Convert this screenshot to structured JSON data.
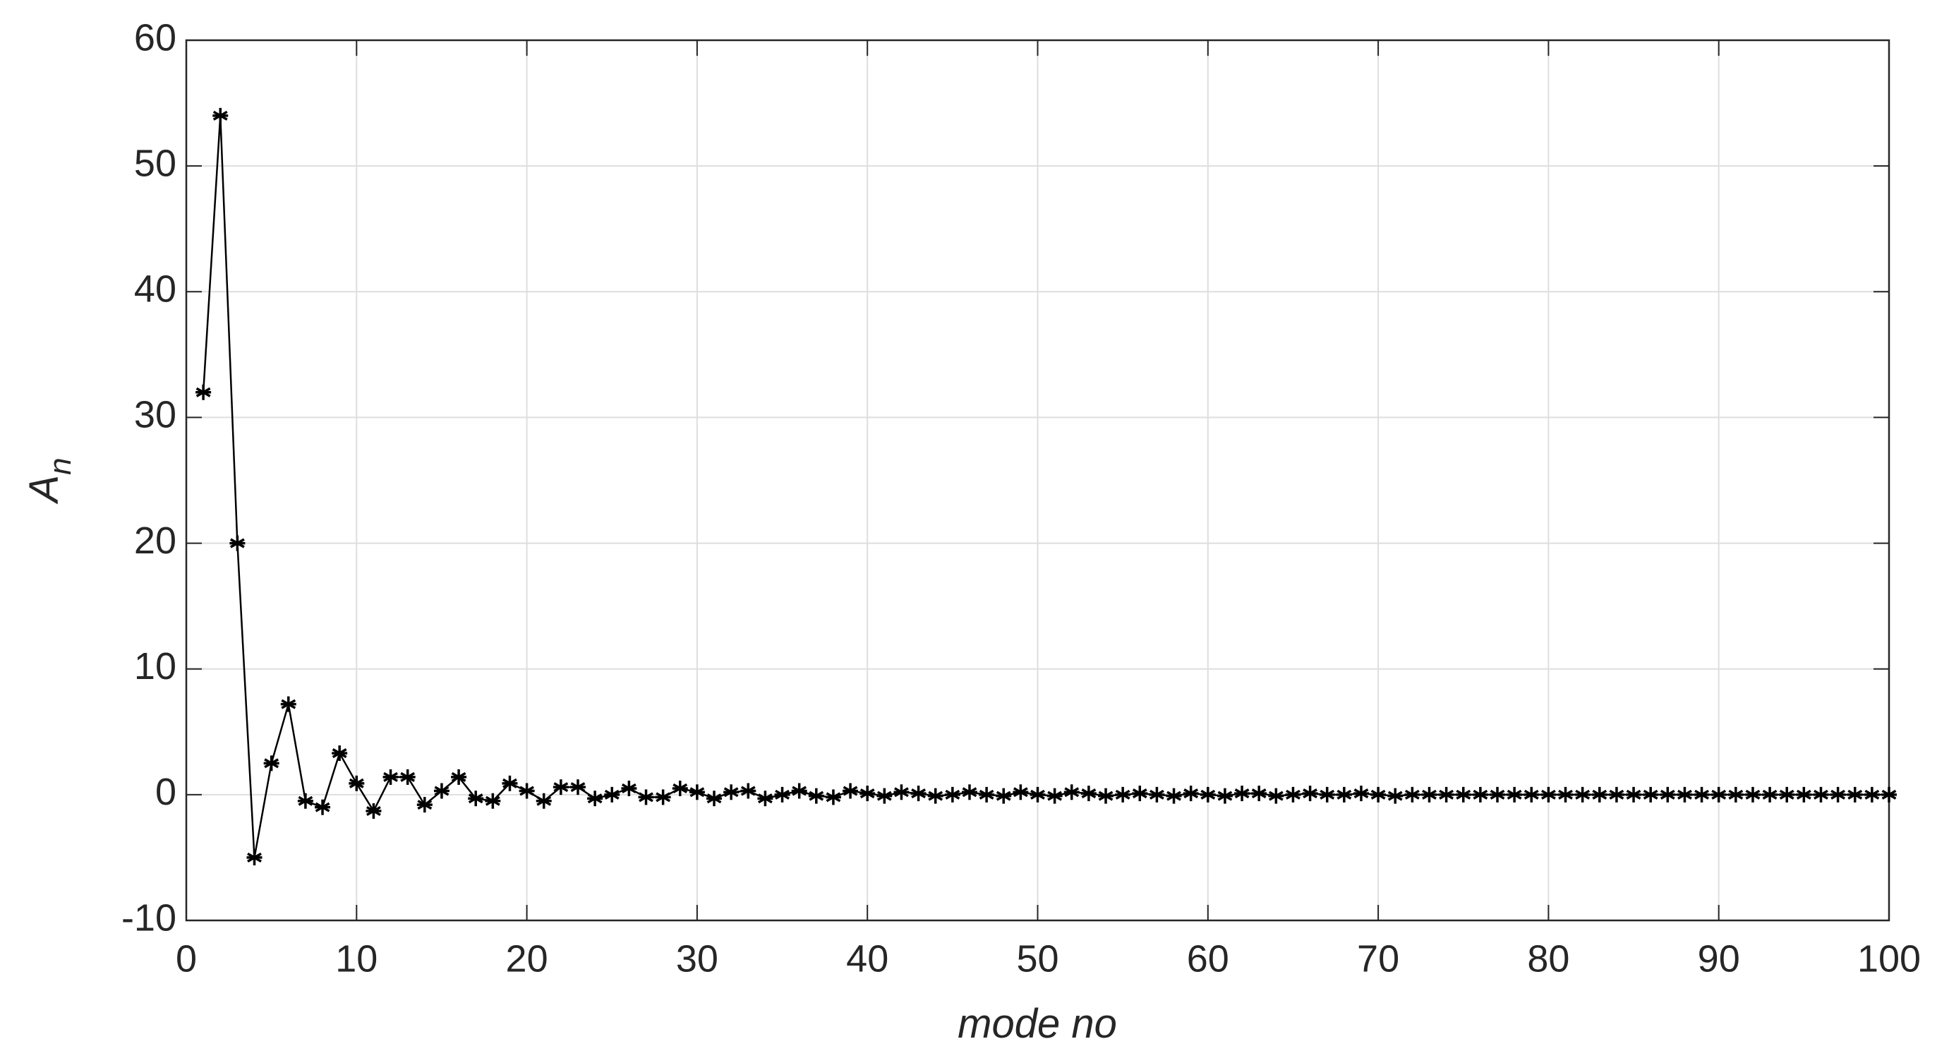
{
  "chart_data": {
    "type": "line",
    "x_label": "mode no",
    "y_label": "A",
    "y_label_subscript": "n",
    "x": [
      1,
      2,
      3,
      4,
      5,
      6,
      7,
      8,
      9,
      10,
      11,
      12,
      13,
      14,
      15,
      16,
      17,
      18,
      19,
      20,
      21,
      22,
      23,
      24,
      25,
      26,
      27,
      28,
      29,
      30,
      31,
      32,
      33,
      34,
      35,
      36,
      37,
      38,
      39,
      40,
      41,
      42,
      43,
      44,
      45,
      46,
      47,
      48,
      49,
      50,
      51,
      52,
      53,
      54,
      55,
      56,
      57,
      58,
      59,
      60,
      61,
      62,
      63,
      64,
      65,
      66,
      67,
      68,
      69,
      70,
      71,
      72,
      73,
      74,
      75,
      76,
      77,
      78,
      79,
      80,
      81,
      82,
      83,
      84,
      85,
      86,
      87,
      88,
      89,
      90,
      91,
      92,
      93,
      94,
      95,
      96,
      97,
      98,
      99,
      100
    ],
    "series": [
      {
        "color": "#000000",
        "marker": "asterisk",
        "values": [
          32,
          54,
          20,
          -5,
          2.5,
          7.2,
          -0.5,
          -1,
          3.3,
          0.9,
          -1.3,
          1.4,
          1.4,
          -0.8,
          0.3,
          1.4,
          -0.3,
          -0.5,
          0.9,
          0.3,
          -0.5,
          0.6,
          0.6,
          -0.3,
          0,
          0.5,
          -0.2,
          -0.2,
          0.5,
          0.2,
          -0.3,
          0.2,
          0.3,
          -0.3,
          0,
          0.3,
          -0.1,
          -0.2,
          0.3,
          0.1,
          -0.1,
          0.2,
          0.1,
          -0.1,
          0,
          0.2,
          0,
          -0.1,
          0.2,
          0,
          -0.1,
          0.2,
          0.1,
          -0.1,
          0,
          0.1,
          0,
          -0.1,
          0.1,
          0,
          -0.1,
          0.1,
          0.1,
          -0.1,
          0,
          0.1,
          0,
          0,
          0.1,
          0,
          -0.1,
          0,
          0,
          0,
          0,
          0,
          0,
          0,
          0,
          0,
          0,
          0,
          0,
          0,
          0,
          0,
          0,
          0,
          0,
          0,
          0,
          0,
          0,
          0,
          0,
          0,
          0,
          0,
          0,
          0
        ]
      }
    ],
    "xlim": [
      0,
      100
    ],
    "ylim": [
      -10,
      60
    ],
    "xticks": [
      0,
      10,
      20,
      30,
      40,
      50,
      60,
      70,
      80,
      90,
      100
    ],
    "yticks": [
      -10,
      0,
      10,
      20,
      30,
      40,
      50,
      60
    ],
    "grid": true
  }
}
